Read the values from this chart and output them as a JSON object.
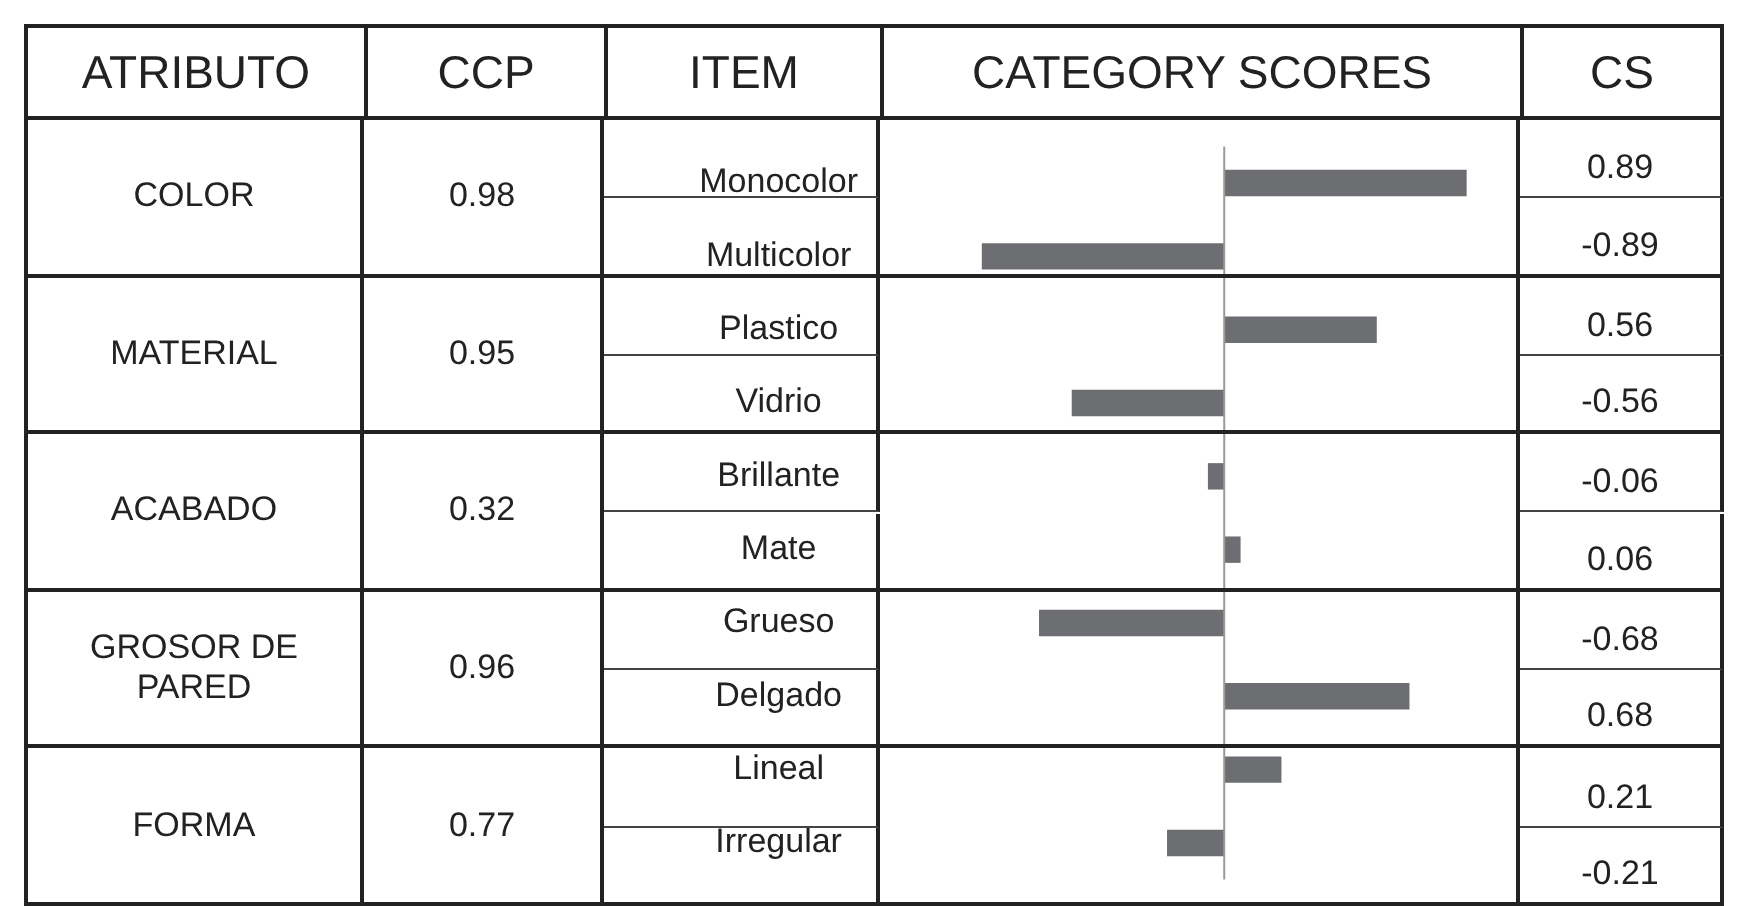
{
  "chart_data": {
    "type": "bar",
    "orientation": "horizontal",
    "xlabel": "CATEGORY SCORES",
    "ylabel": "ITEM",
    "categories": [
      "Monocolor",
      "Multicolor",
      "Plastico",
      "Vidrio",
      "Brillante",
      "Mate",
      "Grueso",
      "Delgado",
      "Lineal",
      "Irregular"
    ],
    "values": [
      0.89,
      -0.89,
      0.56,
      -0.56,
      -0.06,
      0.06,
      -0.68,
      0.68,
      0.21,
      -0.21
    ],
    "color": "#6d6e71",
    "data_labels": true,
    "legend": false,
    "annotations": [
      "ATRIBUTO",
      "CCP",
      "CS",
      "COLOR",
      "0.98",
      "MATERIAL",
      "0.95",
      "ACABADO",
      "0.32",
      "GROSOR DE PARED",
      "0.96",
      "FORMA",
      "0.77"
    ]
  }
}
